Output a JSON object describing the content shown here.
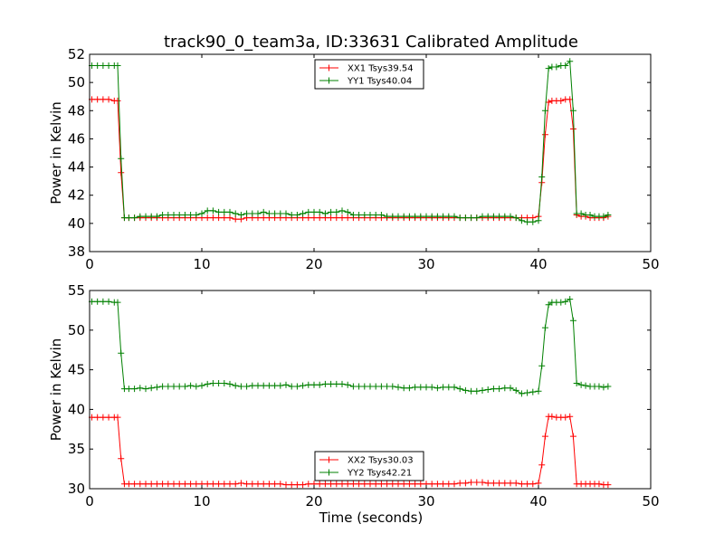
{
  "figure": {
    "title": "track90_0_team3a, ID:33631 Calibrated Amplitude",
    "xlabel": "Time (seconds)"
  },
  "chart_data": [
    {
      "type": "line",
      "title": "track90_0_team3a, ID:33631 Calibrated Amplitude",
      "xlabel": "",
      "ylabel": "Power in Kelvin",
      "xlim": [
        0,
        50
      ],
      "ylim": [
        38,
        52
      ],
      "xticks": [
        0,
        10,
        20,
        30,
        40,
        50
      ],
      "yticks": [
        38,
        40,
        42,
        44,
        46,
        48,
        50,
        52
      ],
      "legend_position": "top-center",
      "grid": false,
      "series": [
        {
          "name": "XX1 Tsys39.54",
          "color": "#ff0000",
          "marker": "plus",
          "x": [
            0.2,
            0.7,
            1.2,
            1.7,
            2.2,
            2.5,
            2.8,
            3.1,
            3.5,
            4.0,
            4.5,
            5.0,
            5.5,
            6.0,
            6.5,
            7.0,
            7.5,
            8.0,
            8.5,
            9.0,
            9.5,
            10.0,
            10.5,
            11.0,
            11.5,
            12.0,
            12.5,
            13.0,
            13.5,
            14.0,
            14.5,
            15.0,
            15.5,
            16.0,
            16.5,
            17.0,
            17.5,
            18.0,
            18.5,
            19.0,
            19.5,
            20.0,
            20.5,
            21.0,
            21.5,
            22.0,
            22.5,
            23.0,
            23.5,
            24.0,
            24.5,
            25.0,
            25.5,
            26.0,
            26.5,
            27.0,
            27.5,
            28.0,
            28.5,
            29.0,
            29.5,
            30.0,
            30.5,
            31.0,
            31.5,
            32.0,
            32.5,
            33.0,
            33.5,
            34.0,
            34.5,
            35.0,
            35.5,
            36.0,
            36.5,
            37.0,
            37.5,
            38.0,
            38.5,
            39.0,
            39.5,
            40.0,
            40.3,
            40.6,
            40.9,
            41.2,
            41.6,
            42.0,
            42.4,
            42.8,
            43.1,
            43.4,
            43.8,
            44.2,
            44.6,
            45.0,
            45.4,
            45.8,
            46.2
          ],
          "y": [
            48.8,
            48.8,
            48.8,
            48.8,
            48.7,
            48.7,
            43.6,
            40.4,
            40.4,
            40.4,
            40.4,
            40.4,
            40.4,
            40.4,
            40.4,
            40.4,
            40.4,
            40.4,
            40.4,
            40.4,
            40.4,
            40.4,
            40.4,
            40.4,
            40.4,
            40.4,
            40.4,
            40.3,
            40.3,
            40.4,
            40.4,
            40.4,
            40.4,
            40.4,
            40.4,
            40.4,
            40.4,
            40.4,
            40.4,
            40.4,
            40.4,
            40.4,
            40.4,
            40.4,
            40.4,
            40.4,
            40.4,
            40.4,
            40.4,
            40.4,
            40.4,
            40.4,
            40.4,
            40.4,
            40.4,
            40.4,
            40.4,
            40.4,
            40.4,
            40.4,
            40.4,
            40.4,
            40.4,
            40.4,
            40.4,
            40.4,
            40.4,
            40.4,
            40.4,
            40.4,
            40.4,
            40.4,
            40.4,
            40.4,
            40.4,
            40.4,
            40.4,
            40.4,
            40.4,
            40.4,
            40.4,
            40.5,
            42.9,
            46.3,
            48.6,
            48.7,
            48.7,
            48.7,
            48.8,
            48.8,
            46.7,
            40.6,
            40.5,
            40.5,
            40.4,
            40.4,
            40.4,
            40.4,
            40.5
          ]
        },
        {
          "name": "YY1 Tsys40.04",
          "color": "#008000",
          "marker": "plus",
          "x": [
            0.2,
            0.7,
            1.2,
            1.7,
            2.2,
            2.5,
            2.8,
            3.1,
            3.5,
            4.0,
            4.5,
            5.0,
            5.5,
            6.0,
            6.5,
            7.0,
            7.5,
            8.0,
            8.5,
            9.0,
            9.5,
            10.0,
            10.5,
            11.0,
            11.5,
            12.0,
            12.5,
            13.0,
            13.5,
            14.0,
            14.5,
            15.0,
            15.5,
            16.0,
            16.5,
            17.0,
            17.5,
            18.0,
            18.5,
            19.0,
            19.5,
            20.0,
            20.5,
            21.0,
            21.5,
            22.0,
            22.5,
            23.0,
            23.5,
            24.0,
            24.5,
            25.0,
            25.5,
            26.0,
            26.5,
            27.0,
            27.5,
            28.0,
            28.5,
            29.0,
            29.5,
            30.0,
            30.5,
            31.0,
            31.5,
            32.0,
            32.5,
            33.0,
            33.5,
            34.0,
            34.5,
            35.0,
            35.5,
            36.0,
            36.5,
            37.0,
            37.5,
            38.0,
            38.5,
            39.0,
            39.5,
            40.0,
            40.3,
            40.6,
            40.9,
            41.2,
            41.6,
            42.0,
            42.4,
            42.8,
            43.1,
            43.4,
            43.8,
            44.2,
            44.6,
            45.0,
            45.4,
            45.8,
            46.2
          ],
          "y": [
            51.2,
            51.2,
            51.2,
            51.2,
            51.2,
            51.2,
            44.6,
            40.4,
            40.4,
            40.4,
            40.5,
            40.5,
            40.5,
            40.5,
            40.6,
            40.6,
            40.6,
            40.6,
            40.6,
            40.6,
            40.6,
            40.7,
            40.9,
            40.9,
            40.8,
            40.8,
            40.8,
            40.7,
            40.6,
            40.7,
            40.7,
            40.7,
            40.8,
            40.7,
            40.7,
            40.7,
            40.7,
            40.6,
            40.6,
            40.7,
            40.8,
            40.8,
            40.8,
            40.7,
            40.8,
            40.8,
            40.9,
            40.8,
            40.6,
            40.6,
            40.6,
            40.6,
            40.6,
            40.6,
            40.5,
            40.5,
            40.5,
            40.5,
            40.5,
            40.5,
            40.5,
            40.5,
            40.5,
            40.5,
            40.5,
            40.5,
            40.5,
            40.4,
            40.4,
            40.4,
            40.4,
            40.5,
            40.5,
            40.5,
            40.5,
            40.5,
            40.5,
            40.4,
            40.2,
            40.1,
            40.1,
            40.2,
            43.3,
            48.0,
            51.0,
            51.1,
            51.1,
            51.2,
            51.2,
            51.5,
            48.0,
            40.7,
            40.7,
            40.6,
            40.6,
            40.5,
            40.5,
            40.5,
            40.6
          ]
        }
      ]
    },
    {
      "type": "line",
      "title": "",
      "xlabel": "Time (seconds)",
      "ylabel": "Power in Kelvin",
      "xlim": [
        0,
        50
      ],
      "ylim": [
        30,
        55
      ],
      "xticks": [
        0,
        10,
        20,
        30,
        40,
        50
      ],
      "yticks": [
        30,
        35,
        40,
        45,
        50,
        55
      ],
      "legend_position": "bottom-center",
      "grid": false,
      "series": [
        {
          "name": "XX2 Tsys30.03",
          "color": "#ff0000",
          "marker": "plus",
          "x": [
            0.2,
            0.7,
            1.2,
            1.7,
            2.2,
            2.5,
            2.8,
            3.1,
            3.5,
            4.0,
            4.5,
            5.0,
            5.5,
            6.0,
            6.5,
            7.0,
            7.5,
            8.0,
            8.5,
            9.0,
            9.5,
            10.0,
            10.5,
            11.0,
            11.5,
            12.0,
            12.5,
            13.0,
            13.5,
            14.0,
            14.5,
            15.0,
            15.5,
            16.0,
            16.5,
            17.0,
            17.5,
            18.0,
            18.5,
            19.0,
            19.5,
            20.0,
            20.5,
            21.0,
            21.5,
            22.0,
            22.5,
            23.0,
            23.5,
            24.0,
            24.5,
            25.0,
            25.5,
            26.0,
            26.5,
            27.0,
            27.5,
            28.0,
            28.5,
            29.0,
            29.5,
            30.0,
            30.5,
            31.0,
            31.5,
            32.0,
            32.5,
            33.0,
            33.5,
            34.0,
            34.5,
            35.0,
            35.5,
            36.0,
            36.5,
            37.0,
            37.5,
            38.0,
            38.5,
            39.0,
            39.5,
            40.0,
            40.3,
            40.6,
            40.9,
            41.2,
            41.6,
            42.0,
            42.4,
            42.8,
            43.1,
            43.4,
            43.8,
            44.2,
            44.6,
            45.0,
            45.4,
            45.8,
            46.2
          ],
          "y": [
            39.0,
            39.0,
            39.0,
            39.0,
            39.0,
            39.0,
            33.8,
            30.6,
            30.6,
            30.6,
            30.6,
            30.6,
            30.6,
            30.6,
            30.6,
            30.6,
            30.6,
            30.6,
            30.6,
            30.6,
            30.6,
            30.6,
            30.6,
            30.6,
            30.6,
            30.6,
            30.6,
            30.6,
            30.7,
            30.6,
            30.6,
            30.6,
            30.6,
            30.6,
            30.6,
            30.6,
            30.5,
            30.5,
            30.5,
            30.5,
            30.6,
            30.6,
            30.6,
            30.6,
            30.6,
            30.6,
            30.6,
            30.6,
            30.6,
            30.6,
            30.6,
            30.6,
            30.6,
            30.6,
            30.6,
            30.6,
            30.6,
            30.6,
            30.6,
            30.6,
            30.6,
            30.6,
            30.6,
            30.6,
            30.6,
            30.6,
            30.6,
            30.7,
            30.7,
            30.8,
            30.8,
            30.8,
            30.7,
            30.7,
            30.7,
            30.7,
            30.7,
            30.7,
            30.6,
            30.6,
            30.6,
            30.7,
            33.0,
            36.6,
            39.1,
            39.1,
            39.0,
            39.0,
            39.0,
            39.1,
            36.6,
            30.6,
            30.6,
            30.6,
            30.6,
            30.6,
            30.6,
            30.5,
            30.5
          ]
        },
        {
          "name": "YY2 Tsys42.21",
          "color": "#008000",
          "marker": "plus",
          "x": [
            0.2,
            0.7,
            1.2,
            1.7,
            2.2,
            2.5,
            2.8,
            3.1,
            3.5,
            4.0,
            4.5,
            5.0,
            5.5,
            6.0,
            6.5,
            7.0,
            7.5,
            8.0,
            8.5,
            9.0,
            9.5,
            10.0,
            10.5,
            11.0,
            11.5,
            12.0,
            12.5,
            13.0,
            13.5,
            14.0,
            14.5,
            15.0,
            15.5,
            16.0,
            16.5,
            17.0,
            17.5,
            18.0,
            18.5,
            19.0,
            19.5,
            20.0,
            20.5,
            21.0,
            21.5,
            22.0,
            22.5,
            23.0,
            23.5,
            24.0,
            24.5,
            25.0,
            25.5,
            26.0,
            26.5,
            27.0,
            27.5,
            28.0,
            28.5,
            29.0,
            29.5,
            30.0,
            30.5,
            31.0,
            31.5,
            32.0,
            32.5,
            33.0,
            33.5,
            34.0,
            34.5,
            35.0,
            35.5,
            36.0,
            36.5,
            37.0,
            37.5,
            38.0,
            38.5,
            39.0,
            39.5,
            40.0,
            40.3,
            40.6,
            40.9,
            41.2,
            41.6,
            42.0,
            42.4,
            42.8,
            43.1,
            43.4,
            43.8,
            44.2,
            44.6,
            45.0,
            45.4,
            45.8,
            46.2
          ],
          "y": [
            53.6,
            53.6,
            53.6,
            53.6,
            53.5,
            53.5,
            47.1,
            42.6,
            42.6,
            42.6,
            42.7,
            42.6,
            42.7,
            42.8,
            42.9,
            42.9,
            42.9,
            42.9,
            42.9,
            43.0,
            42.9,
            43.0,
            43.2,
            43.3,
            43.3,
            43.3,
            43.2,
            43.0,
            42.9,
            42.9,
            43.0,
            43.0,
            43.0,
            43.0,
            43.0,
            43.0,
            43.1,
            42.9,
            42.9,
            43.0,
            43.1,
            43.1,
            43.1,
            43.2,
            43.2,
            43.2,
            43.2,
            43.1,
            42.9,
            42.9,
            42.9,
            42.9,
            42.9,
            42.9,
            42.9,
            42.9,
            42.8,
            42.7,
            42.7,
            42.8,
            42.8,
            42.8,
            42.8,
            42.7,
            42.8,
            42.8,
            42.8,
            42.6,
            42.4,
            42.3,
            42.3,
            42.4,
            42.5,
            42.6,
            42.6,
            42.7,
            42.7,
            42.4,
            42.0,
            42.1,
            42.2,
            42.3,
            45.5,
            50.3,
            53.2,
            53.5,
            53.5,
            53.5,
            53.6,
            53.9,
            51.2,
            43.3,
            43.1,
            43.0,
            42.9,
            42.9,
            42.9,
            42.8,
            42.9
          ]
        }
      ]
    }
  ]
}
